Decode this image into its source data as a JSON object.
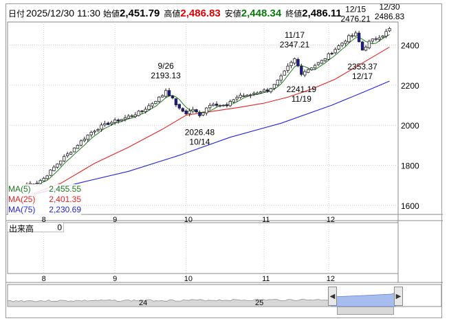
{
  "header": {
    "date_label": "日付",
    "datetime": "2025/12/30 11:30",
    "open_label": "始値",
    "open": "2,451.79",
    "high_label": "高値",
    "high": "2,486.83",
    "low_label": "安値",
    "low": "2,448.34",
    "close_label": "終値",
    "close": "2,486.11"
  },
  "colors": {
    "up": "#ffffff",
    "down": "#1a1a9a",
    "ma5": "#1a7a1a",
    "ma25": "#e82020",
    "ma75": "#2020e0",
    "high_value": "#e00000",
    "low_value": "#0a7a0a",
    "scroller_fill": "#a7bcef"
  },
  "ma_legend": [
    {
      "name": "MA(5)",
      "value": "2,455.55",
      "color": "#1a7a1a"
    },
    {
      "name": "MA(25)",
      "value": "2,401.35",
      "color": "#e82020"
    },
    {
      "name": "MA(75)",
      "value": "2,230.69",
      "color": "#2020e0"
    }
  ],
  "volume": {
    "label": "出来高",
    "value": "0"
  },
  "chart_data": {
    "type": "candlestick",
    "y_ticks": [
      "2400",
      "2200",
      "2000",
      "1800",
      "1600"
    ],
    "y_tick_values": [
      2400,
      2200,
      2000,
      1800,
      1600
    ],
    "ylim": [
      1555,
      2515
    ],
    "x_month_labels": [
      "8",
      "9",
      "10",
      "11",
      "12"
    ],
    "x_month_start_index": [
      5,
      26,
      47,
      70,
      89
    ],
    "bar_count": 108,
    "grid": true,
    "annotations": [
      {
        "date": "9/26",
        "value": "2193.13",
        "index": 41,
        "y": 2193.13,
        "pos": "above"
      },
      {
        "date": "10/14",
        "value": "2026.48",
        "index": 51,
        "y": 2026.48,
        "pos": "below"
      },
      {
        "date": "11/17",
        "value": "2347.21",
        "index": 79,
        "y": 2347.21,
        "pos": "above"
      },
      {
        "date": "11/19",
        "value": "2241.19",
        "index": 81,
        "y": 2241.19,
        "pos": "below"
      },
      {
        "date": "12/15",
        "value": "2476.21",
        "index": 97,
        "y": 2476.21,
        "pos": "above"
      },
      {
        "date": "12/17",
        "value": "2353.37",
        "index": 99,
        "y": 2353.37,
        "pos": "below"
      },
      {
        "date": "12/30",
        "value": "2486.83",
        "index": 107,
        "y": 2486.83,
        "pos": "above"
      }
    ],
    "anchors": [
      [
        0,
        1705
      ],
      [
        3,
        1715
      ],
      [
        5,
        1735
      ],
      [
        8,
        1790
      ],
      [
        10,
        1825
      ],
      [
        13,
        1870
      ],
      [
        16,
        1920
      ],
      [
        19,
        1965
      ],
      [
        22,
        1995
      ],
      [
        25,
        2015
      ],
      [
        28,
        2030
      ],
      [
        31,
        2050
      ],
      [
        34,
        2070
      ],
      [
        37,
        2110
      ],
      [
        40,
        2150
      ],
      [
        41,
        2175
      ],
      [
        43,
        2130
      ],
      [
        45,
        2080
      ],
      [
        47,
        2060
      ],
      [
        49,
        2080
      ],
      [
        51,
        2045
      ],
      [
        53,
        2090
      ],
      [
        55,
        2110
      ],
      [
        57,
        2100
      ],
      [
        59,
        2095
      ],
      [
        61,
        2130
      ],
      [
        63,
        2150
      ],
      [
        65,
        2145
      ],
      [
        67,
        2160
      ],
      [
        69,
        2170
      ],
      [
        71,
        2175
      ],
      [
        73,
        2200
      ],
      [
        75,
        2240
      ],
      [
        77,
        2290
      ],
      [
        79,
        2330
      ],
      [
        81,
        2260
      ],
      [
        83,
        2280
      ],
      [
        85,
        2300
      ],
      [
        87,
        2320
      ],
      [
        89,
        2350
      ],
      [
        91,
        2380
      ],
      [
        93,
        2410
      ],
      [
        95,
        2440
      ],
      [
        97,
        2455
      ],
      [
        99,
        2375
      ],
      [
        101,
        2415
      ],
      [
        103,
        2435
      ],
      [
        105,
        2450
      ],
      [
        107,
        2480
      ]
    ],
    "ma25_points": [
      [
        2,
        1660
      ],
      [
        10,
        1710
      ],
      [
        20,
        1810
      ],
      [
        30,
        1890
      ],
      [
        40,
        1980
      ],
      [
        47,
        2050
      ],
      [
        55,
        2070
      ],
      [
        63,
        2090
      ],
      [
        70,
        2110
      ],
      [
        77,
        2140
      ],
      [
        84,
        2180
      ],
      [
        91,
        2230
      ],
      [
        98,
        2300
      ],
      [
        104,
        2360
      ],
      [
        107,
        2390
      ]
    ],
    "ma75_points": [
      [
        2,
        1655
      ],
      [
        15,
        1710
      ],
      [
        30,
        1770
      ],
      [
        45,
        1850
      ],
      [
        60,
        1940
      ],
      [
        75,
        2010
      ],
      [
        90,
        2100
      ],
      [
        100,
        2170
      ],
      [
        107,
        2220
      ]
    ],
    "scroller_labels": [
      {
        "label": "24",
        "index": 3
      },
      {
        "label": "25",
        "index": 16
      }
    ]
  }
}
